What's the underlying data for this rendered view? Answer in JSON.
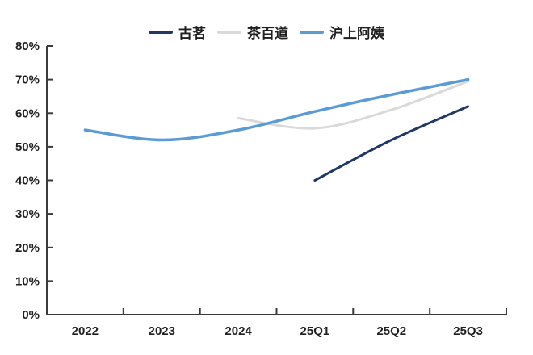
{
  "figure": {
    "background": "#ffffff"
  },
  "chart_data": {
    "type": "line",
    "title": "",
    "categories": [
      "2022",
      "2023",
      "2024",
      "25Q1",
      "25Q2",
      "25Q3"
    ],
    "series": [
      {
        "name": "古茗",
        "color": "#1f3864",
        "values": [
          null,
          null,
          null,
          40,
          52,
          62
        ]
      },
      {
        "name": "茶百道",
        "color": "#d9d9d9",
        "values": [
          null,
          null,
          58.5,
          55.5,
          61,
          69.5
        ]
      },
      {
        "name": "沪上阿姨",
        "color": "#5b9bd5",
        "values": [
          55,
          52,
          55,
          60.5,
          65.5,
          70
        ]
      }
    ],
    "xlabel": "",
    "ylabel": "",
    "ylim": [
      0,
      80
    ],
    "ytick_step": 10,
    "ytick_suffix": "%",
    "grid": false,
    "legend_position": "top",
    "smooth_lines": true,
    "axis_color": "#3a3a3a",
    "label_color": "#1f1f1f"
  }
}
